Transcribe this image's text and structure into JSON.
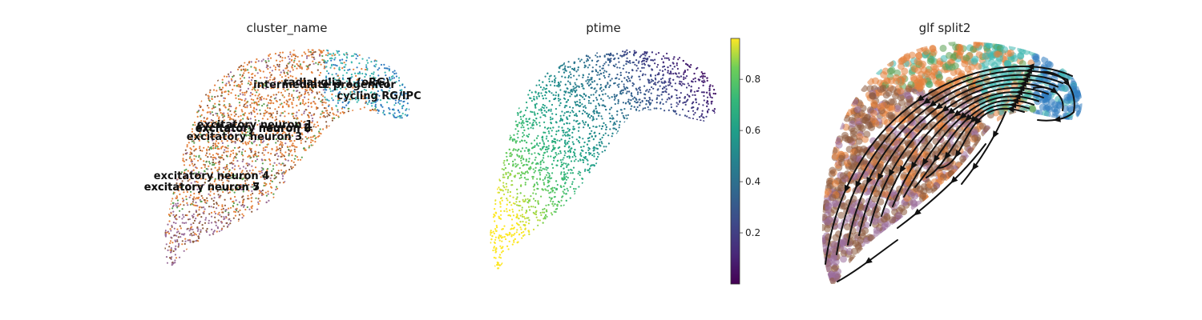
{
  "chart_data": [
    {
      "type": "scatter",
      "title": "cluster_name",
      "legend": "on data",
      "cluster_labels": [
        "intermediate progenitor",
        "radial glia 1 (oRG)",
        "cycling RG/IPC",
        "excitatory neuron 1",
        "excitatory neuron 2",
        "excitatory neuron 6",
        "excitatory neuron 3",
        "excitatory neuron 4",
        "excitatory neuron 5",
        "excitatory neuron 7"
      ]
    },
    {
      "type": "scatter",
      "title": "ptime",
      "colorbar": {
        "colormap": "viridis",
        "range": [
          0.0,
          0.96
        ],
        "ticks": [
          "0.2",
          "0.4",
          "0.6",
          "0.8"
        ]
      }
    },
    {
      "type": "scatter",
      "title": "glf split2",
      "overlay": "velocity streamlines"
    }
  ],
  "colors": {
    "progenitor_blue": "#2f7bbf",
    "teal": "#3fb8b0",
    "orange": "#e4803a",
    "brown": "#8c5a3c",
    "purple": "#9a6e9a",
    "green": "#5aa052"
  }
}
